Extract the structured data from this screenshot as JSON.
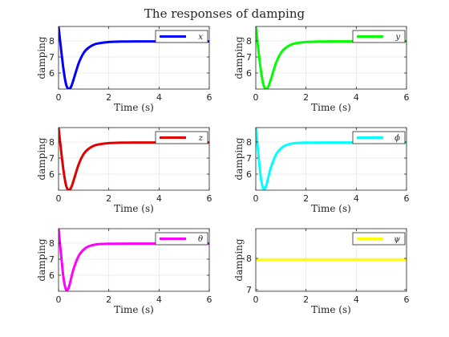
{
  "figure": {
    "title": "The responses of damping"
  },
  "chart_data": [
    {
      "type": "line",
      "xlabel": "Time (s)",
      "ylabel": "damping",
      "xlim": [
        0,
        6
      ],
      "ylim": [
        5,
        8.9
      ],
      "xticks": [
        0,
        2,
        4,
        6
      ],
      "yticks": [
        6,
        7,
        8
      ],
      "grid": true,
      "legend_position": "top-right",
      "series": [
        {
          "name": "x",
          "color": "#0000ff",
          "x": [
            0,
            0.1,
            0.2,
            0.3,
            0.4,
            0.5,
            0.6,
            0.8,
            1.0,
            1.2,
            1.5,
            2.0,
            2.5,
            3.0,
            4.0,
            5.0,
            6.0
          ],
          "y": [
            8.9,
            7.5,
            6.2,
            5.3,
            5.0,
            5.15,
            5.6,
            6.6,
            7.25,
            7.58,
            7.82,
            7.93,
            7.96,
            7.97,
            7.97,
            7.97,
            7.97
          ]
        }
      ]
    },
    {
      "type": "line",
      "xlabel": "Time (s)",
      "ylabel": "damping",
      "xlim": [
        0,
        6
      ],
      "ylim": [
        5,
        8.9
      ],
      "xticks": [
        0,
        2,
        4,
        6
      ],
      "yticks": [
        6,
        7,
        8
      ],
      "grid": true,
      "legend_position": "top-right",
      "series": [
        {
          "name": "y",
          "color": "#00ff00",
          "x": [
            0,
            0.1,
            0.2,
            0.3,
            0.4,
            0.5,
            0.6,
            0.8,
            1.0,
            1.2,
            1.5,
            2.0,
            2.5,
            3.0,
            4.0,
            5.0,
            6.0
          ],
          "y": [
            8.9,
            7.5,
            6.2,
            5.3,
            5.0,
            5.15,
            5.6,
            6.6,
            7.25,
            7.58,
            7.82,
            7.93,
            7.96,
            7.97,
            7.97,
            7.97,
            7.97
          ]
        }
      ]
    },
    {
      "type": "line",
      "xlabel": "Time (s)",
      "ylabel": "damping",
      "xlim": [
        0,
        6
      ],
      "ylim": [
        5,
        8.9
      ],
      "xticks": [
        0,
        2,
        4,
        6
      ],
      "yticks": [
        6,
        7,
        8
      ],
      "grid": true,
      "legend_position": "top-right",
      "series": [
        {
          "name": "z",
          "color": "#e00000",
          "x": [
            0,
            0.1,
            0.2,
            0.3,
            0.4,
            0.5,
            0.6,
            0.8,
            1.0,
            1.2,
            1.5,
            2.0,
            2.5,
            3.0,
            4.0,
            5.0,
            6.0
          ],
          "y": [
            8.9,
            7.5,
            6.2,
            5.3,
            5.0,
            5.15,
            5.6,
            6.6,
            7.25,
            7.58,
            7.82,
            7.93,
            7.96,
            7.97,
            7.97,
            7.97,
            7.97
          ]
        }
      ]
    },
    {
      "type": "line",
      "xlabel": "Time (s)",
      "ylabel": "damping",
      "xlim": [
        0,
        6
      ],
      "ylim": [
        5,
        8.9
      ],
      "xticks": [
        0,
        2,
        4,
        6
      ],
      "yticks": [
        6,
        7,
        8
      ],
      "grid": true,
      "legend_position": "top-right",
      "series": [
        {
          "name": "ϕ",
          "color": "#00ffff",
          "x": [
            0,
            0.1,
            0.2,
            0.3,
            0.4,
            0.5,
            0.6,
            0.8,
            1.0,
            1.2,
            1.5,
            2.0,
            3.0,
            4.0,
            5.0,
            6.0
          ],
          "y": [
            8.9,
            7.3,
            5.8,
            5.1,
            5.2,
            5.8,
            6.4,
            7.2,
            7.6,
            7.8,
            7.92,
            7.96,
            7.97,
            7.97,
            7.97,
            7.97
          ]
        }
      ]
    },
    {
      "type": "line",
      "xlabel": "Time (s)",
      "ylabel": "damping",
      "xlim": [
        0,
        6
      ],
      "ylim": [
        5,
        8.9
      ],
      "xticks": [
        0,
        2,
        4,
        6
      ],
      "yticks": [
        6,
        7,
        8
      ],
      "grid": true,
      "legend_position": "top-right",
      "series": [
        {
          "name": "θ",
          "color": "#ff00ff",
          "x": [
            0,
            0.1,
            0.2,
            0.3,
            0.4,
            0.5,
            0.6,
            0.8,
            1.0,
            1.2,
            1.5,
            2.0,
            3.0,
            4.0,
            5.0,
            6.0
          ],
          "y": [
            8.9,
            7.3,
            5.8,
            5.1,
            5.2,
            5.8,
            6.4,
            7.2,
            7.6,
            7.8,
            7.92,
            7.96,
            7.97,
            7.97,
            7.97,
            7.97
          ]
        }
      ]
    },
    {
      "type": "line",
      "xlabel": "Time (s)",
      "ylabel": "damping",
      "xlim": [
        0,
        6
      ],
      "ylim": [
        6.95,
        8.95
      ],
      "xticks": [
        0,
        2,
        4,
        6
      ],
      "yticks": [
        7,
        8
      ],
      "grid": true,
      "legend_position": "top-right",
      "series": [
        {
          "name": "ψ",
          "color": "#ffff00",
          "x": [
            0,
            6
          ],
          "y": [
            7.95,
            7.95
          ]
        }
      ]
    }
  ]
}
